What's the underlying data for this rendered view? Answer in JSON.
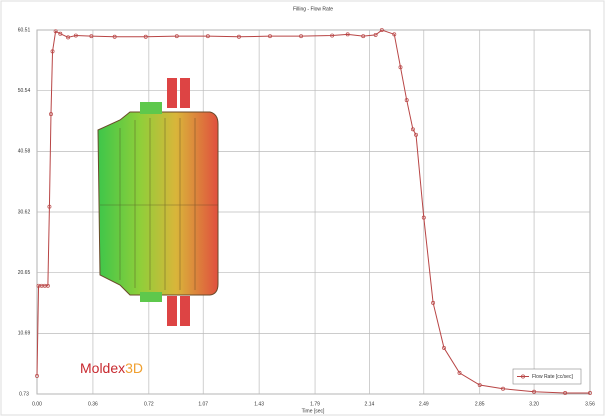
{
  "chart_data": {
    "type": "line",
    "title": "Filling - Flow Rate",
    "x_label": "Time [sec]",
    "x": [
      0,
      0.01,
      0.03,
      0.05,
      0.07,
      0.08,
      0.09,
      0.1,
      0.12,
      0.15,
      0.2,
      0.25,
      0.35,
      0.5,
      0.7,
      0.9,
      1.1,
      1.3,
      1.5,
      1.7,
      1.9,
      2.0,
      2.1,
      2.18,
      2.22,
      2.3,
      2.34,
      2.38,
      2.42,
      2.44,
      2.49,
      2.55,
      2.62,
      2.72,
      2.85,
      3.0,
      3.2,
      3.4,
      3.56
    ],
    "series": [
      {
        "name": "Flow Rate [cc/sec]",
        "color": "#b84545",
        "values": [
          3.7,
          18.5,
          18.5,
          18.5,
          18.5,
          31.5,
          46.7,
          57,
          60.3,
          59.9,
          59.3,
          59.6,
          59.5,
          59.4,
          59.4,
          59.5,
          59.5,
          59.4,
          59.5,
          59.5,
          59.6,
          59.8,
          59.5,
          59.7,
          60.5,
          59.8,
          54.4,
          49,
          44.2,
          43.3,
          29.7,
          15.7,
          8.3,
          4.2,
          2.2,
          1.6,
          1.1,
          0.9,
          0.9
        ]
      }
    ],
    "xlim": [
      0,
      3.56
    ],
    "ylim": [
      0.73,
      60.51
    ],
    "xticks": [
      {
        "value": 0,
        "label": "0.00"
      },
      0.36,
      0.72,
      1.07,
      1.43,
      1.79,
      2.14,
      2.49,
      2.85,
      {
        "value": 3.2,
        "label": "3.20"
      },
      3.56
    ],
    "yticks": [
      0.73,
      10.69,
      20.65,
      30.62,
      40.58,
      50.54,
      60.51
    ],
    "grid": true,
    "legend": "lower right"
  },
  "logo": {
    "brand": "Moldex",
    "suffix": "3D"
  }
}
